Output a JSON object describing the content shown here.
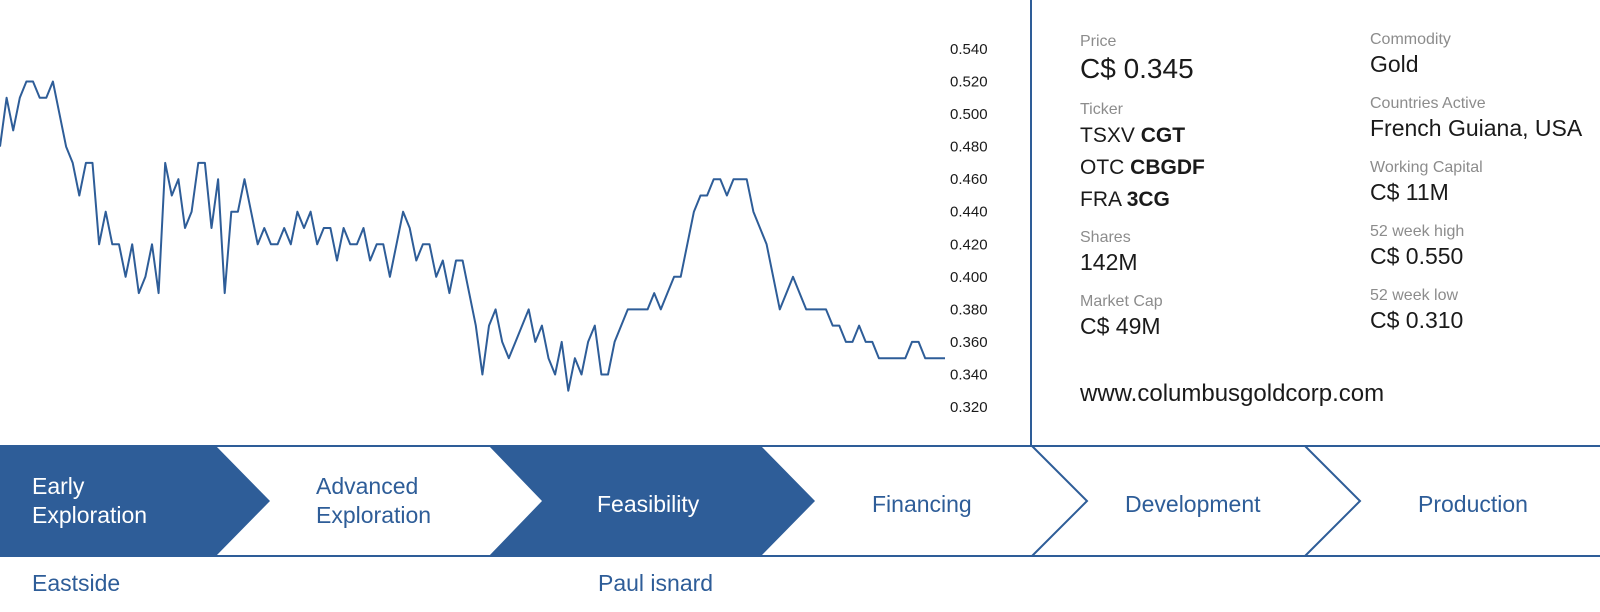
{
  "chart_data": {
    "type": "line",
    "ylim": [
      0.3,
      0.55
    ],
    "yticks": [
      "0.540",
      "0.520",
      "0.500",
      "0.480",
      "0.460",
      "0.440",
      "0.420",
      "0.400",
      "0.380",
      "0.360",
      "0.340",
      "0.320"
    ],
    "ytick_values": [
      0.54,
      0.52,
      0.5,
      0.48,
      0.46,
      0.44,
      0.42,
      0.4,
      0.38,
      0.36,
      0.34,
      0.32
    ],
    "series": [
      {
        "color": "#2e5d98",
        "values": [
          0.48,
          0.51,
          0.49,
          0.51,
          0.52,
          0.52,
          0.51,
          0.51,
          0.52,
          0.5,
          0.48,
          0.47,
          0.45,
          0.47,
          0.47,
          0.42,
          0.44,
          0.42,
          0.42,
          0.4,
          0.42,
          0.39,
          0.4,
          0.42,
          0.39,
          0.47,
          0.45,
          0.46,
          0.43,
          0.44,
          0.47,
          0.47,
          0.43,
          0.46,
          0.39,
          0.44,
          0.44,
          0.46,
          0.44,
          0.42,
          0.43,
          0.42,
          0.42,
          0.43,
          0.42,
          0.44,
          0.43,
          0.44,
          0.42,
          0.43,
          0.43,
          0.41,
          0.43,
          0.42,
          0.42,
          0.43,
          0.41,
          0.42,
          0.42,
          0.4,
          0.42,
          0.44,
          0.43,
          0.41,
          0.42,
          0.42,
          0.4,
          0.41,
          0.39,
          0.41,
          0.41,
          0.39,
          0.37,
          0.34,
          0.37,
          0.38,
          0.36,
          0.35,
          0.36,
          0.37,
          0.38,
          0.36,
          0.37,
          0.35,
          0.34,
          0.36,
          0.33,
          0.35,
          0.34,
          0.36,
          0.37,
          0.34,
          0.34,
          0.36,
          0.37,
          0.38,
          0.38,
          0.38,
          0.38,
          0.39,
          0.38,
          0.39,
          0.4,
          0.4,
          0.42,
          0.44,
          0.45,
          0.45,
          0.46,
          0.46,
          0.45,
          0.46,
          0.46,
          0.46,
          0.44,
          0.43,
          0.42,
          0.4,
          0.38,
          0.39,
          0.4,
          0.39,
          0.38,
          0.38,
          0.38,
          0.38,
          0.37,
          0.37,
          0.36,
          0.36,
          0.37,
          0.36,
          0.36,
          0.35,
          0.35,
          0.35,
          0.35,
          0.35,
          0.36,
          0.36,
          0.35,
          0.35,
          0.35,
          0.35
        ]
      }
    ]
  },
  "info": {
    "price": {
      "label": "Price",
      "value": "C$ 0.345"
    },
    "ticker": {
      "label": "Ticker",
      "lines": [
        {
          "exchange": "TSXV",
          "symbol": "CGT"
        },
        {
          "exchange": "OTC",
          "symbol": "CBGDF"
        },
        {
          "exchange": "FRA",
          "symbol": "3CG"
        }
      ]
    },
    "shares": {
      "label": "Shares",
      "value": "142M"
    },
    "market_cap": {
      "label": "Market Cap",
      "value": "C$ 49M"
    },
    "commodity": {
      "label": "Commodity",
      "value": "Gold"
    },
    "countries": {
      "label": "Countries Active",
      "value": "French Guiana, USA"
    },
    "working_capital": {
      "label": "Working Capital",
      "value": "C$ 11M"
    },
    "high_52": {
      "label": "52 week high",
      "value": "C$ 0.550"
    },
    "low_52": {
      "label": "52 week low",
      "value": "C$ 0.310"
    },
    "website": "www.columbusgoldcorp.com"
  },
  "stages": {
    "items": [
      {
        "line1": "Early",
        "line2": "Exploration",
        "active": true
      },
      {
        "line1": "Advanced",
        "line2": "Exploration",
        "active": false
      },
      {
        "line1": "Feasibility",
        "line2": "",
        "active": true
      },
      {
        "line1": "Financing",
        "line2": "",
        "active": false
      },
      {
        "line1": "Development",
        "line2": "",
        "active": false
      },
      {
        "line1": "Production",
        "line2": "",
        "active": false
      }
    ],
    "colors": {
      "active": "#2e5d98",
      "inactive_text": "#2e5d98",
      "active_text": "#ffffff"
    }
  },
  "projects": [
    {
      "name": "Eastside",
      "stage": "Early Exploration"
    },
    {
      "name": "Paul isnard",
      "stage": "Feasibility"
    }
  ]
}
